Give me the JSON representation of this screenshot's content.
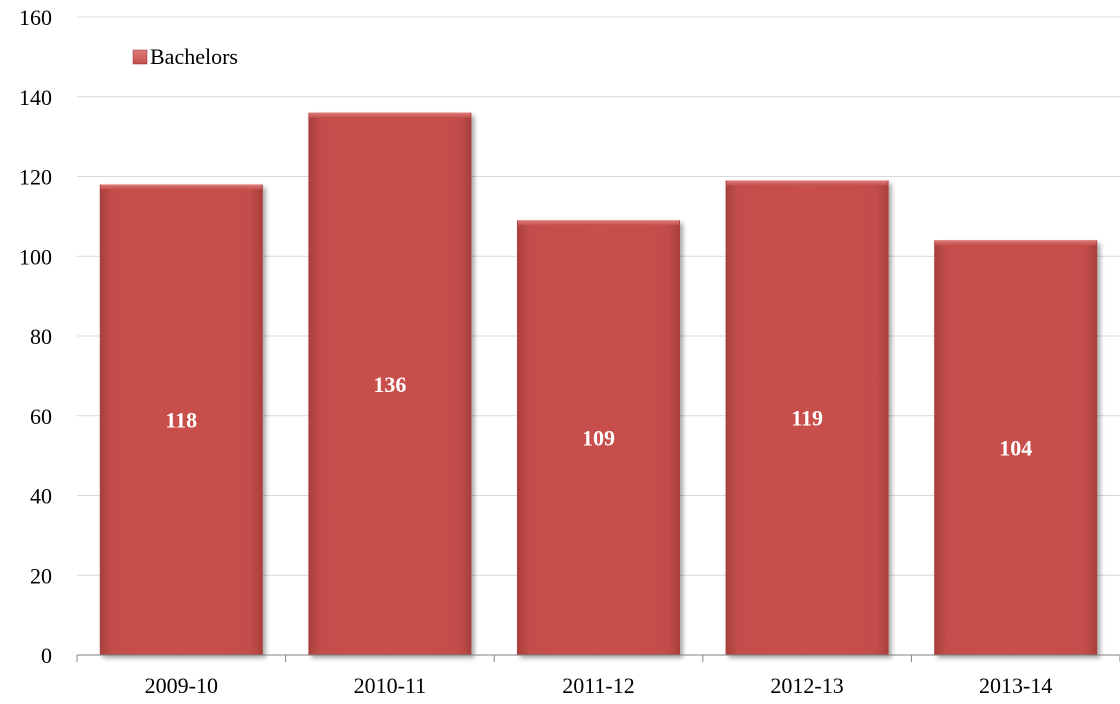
{
  "chart_data": {
    "type": "bar",
    "categories": [
      "2009-10",
      "2010-11",
      "2011-12",
      "2012-13",
      "2013-14"
    ],
    "series": [
      {
        "name": "Bachelors",
        "values": [
          118,
          136,
          109,
          119,
          104
        ],
        "color": "#c0504d"
      }
    ],
    "data_labels": [
      "118",
      "136",
      "109",
      "119",
      "104"
    ],
    "ylim": [
      0,
      160
    ],
    "yticks": [
      0,
      20,
      40,
      60,
      80,
      100,
      120,
      140,
      160
    ],
    "grid": true,
    "legend_position": "top-left",
    "bar_color": "#c0504d",
    "bar_highlight_color": "#d9625f",
    "bar_shadow_color": "#8b2f2d"
  }
}
